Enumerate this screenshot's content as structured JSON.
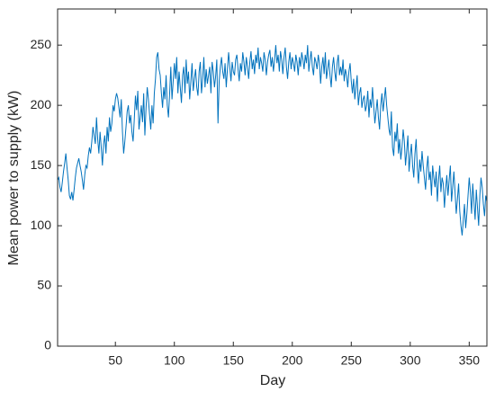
{
  "chart_data": {
    "type": "line",
    "xlabel": "Day",
    "ylabel": "Mean power to supply (kW)",
    "xlim": [
      1,
      365
    ],
    "xticks": [
      50,
      100,
      150,
      200,
      250,
      300,
      350
    ],
    "ylim": [
      0,
      280
    ],
    "yticks": [
      0,
      50,
      100,
      150,
      200,
      250
    ],
    "grid": false,
    "color": "#0072BD",
    "x": [
      1,
      2,
      3,
      4,
      5,
      6,
      7,
      8,
      9,
      10,
      11,
      12,
      13,
      14,
      15,
      16,
      17,
      18,
      19,
      20,
      21,
      22,
      23,
      24,
      25,
      26,
      27,
      28,
      29,
      30,
      31,
      32,
      33,
      34,
      35,
      36,
      37,
      38,
      39,
      40,
      41,
      42,
      43,
      44,
      45,
      46,
      47,
      48,
      49,
      50,
      51,
      52,
      53,
      54,
      55,
      56,
      57,
      58,
      59,
      60,
      61,
      62,
      63,
      64,
      65,
      66,
      67,
      68,
      69,
      70,
      71,
      72,
      73,
      74,
      75,
      76,
      77,
      78,
      79,
      80,
      81,
      82,
      83,
      84,
      85,
      86,
      87,
      88,
      89,
      90,
      91,
      92,
      93,
      94,
      95,
      96,
      97,
      98,
      99,
      100,
      101,
      102,
      103,
      104,
      105,
      106,
      107,
      108,
      109,
      110,
      111,
      112,
      113,
      114,
      115,
      116,
      117,
      118,
      119,
      120,
      121,
      122,
      123,
      124,
      125,
      126,
      127,
      128,
      129,
      130,
      131,
      132,
      133,
      134,
      135,
      136,
      137,
      138,
      139,
      140,
      141,
      142,
      143,
      144,
      145,
      146,
      147,
      148,
      149,
      150,
      151,
      152,
      153,
      154,
      155,
      156,
      157,
      158,
      159,
      160,
      161,
      162,
      163,
      164,
      165,
      166,
      167,
      168,
      169,
      170,
      171,
      172,
      173,
      174,
      175,
      176,
      177,
      178,
      179,
      180,
      181,
      182,
      183,
      184,
      185,
      186,
      187,
      188,
      189,
      190,
      191,
      192,
      193,
      194,
      195,
      196,
      197,
      198,
      199,
      200,
      201,
      202,
      203,
      204,
      205,
      206,
      207,
      208,
      209,
      210,
      211,
      212,
      213,
      214,
      215,
      216,
      217,
      218,
      219,
      220,
      221,
      222,
      223,
      224,
      225,
      226,
      227,
      228,
      229,
      230,
      231,
      232,
      233,
      234,
      235,
      236,
      237,
      238,
      239,
      240,
      241,
      242,
      243,
      244,
      245,
      246,
      247,
      248,
      249,
      250,
      251,
      252,
      253,
      254,
      255,
      256,
      257,
      258,
      259,
      260,
      261,
      262,
      263,
      264,
      265,
      266,
      267,
      268,
      269,
      270,
      271,
      272,
      273,
      274,
      275,
      276,
      277,
      278,
      279,
      280,
      281,
      282,
      283,
      284,
      285,
      286,
      287,
      288,
      289,
      290,
      291,
      292,
      293,
      294,
      295,
      296,
      297,
      298,
      299,
      300,
      301,
      302,
      303,
      304,
      305,
      306,
      307,
      308,
      309,
      310,
      311,
      312,
      313,
      314,
      315,
      316,
      317,
      318,
      319,
      320,
      321,
      322,
      323,
      324,
      325,
      326,
      327,
      328,
      329,
      330,
      331,
      332,
      333,
      334,
      335,
      336,
      337,
      338,
      339,
      340,
      341,
      342,
      343,
      344,
      345,
      346,
      347,
      348,
      349,
      350,
      351,
      352,
      353,
      354,
      355,
      356,
      357,
      358,
      359,
      360,
      361,
      362,
      363,
      364,
      365
    ],
    "values": [
      138,
      140,
      132,
      128,
      136,
      145,
      152,
      160,
      148,
      138,
      125,
      122,
      128,
      121,
      130,
      140,
      148,
      152,
      156,
      150,
      145,
      138,
      130,
      142,
      150,
      148,
      158,
      165,
      160,
      170,
      182,
      175,
      168,
      190,
      172,
      160,
      178,
      165,
      150,
      168,
      175,
      160,
      182,
      170,
      190,
      178,
      185,
      200,
      195,
      205,
      210,
      206,
      198,
      190,
      205,
      178,
      160,
      170,
      182,
      195,
      200,
      185,
      192,
      178,
      170,
      188,
      208,
      196,
      212,
      180,
      190,
      200,
      186,
      210,
      175,
      198,
      215,
      205,
      192,
      180,
      200,
      185,
      210,
      222,
      240,
      244,
      230,
      225,
      210,
      198,
      215,
      205,
      225,
      200,
      190,
      210,
      232,
      205,
      220,
      235,
      222,
      240,
      210,
      228,
      215,
      202,
      225,
      232,
      210,
      238,
      218,
      228,
      205,
      220,
      235,
      212,
      222,
      230,
      215,
      208,
      228,
      236,
      210,
      222,
      240,
      215,
      230,
      218,
      225,
      232,
      210,
      236,
      228,
      215,
      224,
      238,
      185,
      220,
      232,
      240,
      228,
      222,
      235,
      215,
      230,
      244,
      232,
      220,
      236,
      228,
      225,
      238,
      242,
      230,
      220,
      235,
      228,
      244,
      236,
      225,
      240,
      232,
      222,
      236,
      245,
      230,
      238,
      226,
      242,
      235,
      248,
      230,
      240,
      235,
      228,
      244,
      238,
      225,
      236,
      242,
      246,
      232,
      240,
      228,
      238,
      250,
      235,
      242,
      228,
      245,
      238,
      226,
      240,
      248,
      232,
      222,
      236,
      244,
      230,
      240,
      235,
      228,
      242,
      236,
      225,
      240,
      232,
      244,
      238,
      230,
      242,
      235,
      250,
      228,
      238,
      245,
      232,
      225,
      240,
      236,
      230,
      242,
      235,
      218,
      232,
      240,
      226,
      244,
      222,
      230,
      238,
      225,
      215,
      232,
      240,
      228,
      220,
      235,
      242,
      225,
      232,
      225,
      238,
      220,
      230,
      225,
      215,
      228,
      235,
      220,
      210,
      222,
      205,
      215,
      225,
      200,
      210,
      215,
      198,
      205,
      208,
      195,
      200,
      212,
      190,
      205,
      198,
      215,
      200,
      185,
      195,
      205,
      190,
      180,
      200,
      210,
      195,
      205,
      215,
      200,
      190,
      180,
      175,
      195,
      165,
      158,
      178,
      170,
      185,
      160,
      172,
      155,
      165,
      180,
      170,
      150,
      162,
      175,
      145,
      158,
      168,
      150,
      140,
      160,
      172,
      148,
      135,
      155,
      145,
      162,
      150,
      140,
      130,
      148,
      158,
      138,
      145,
      125,
      150,
      140,
      132,
      145,
      120,
      138,
      150,
      128,
      140,
      135,
      115,
      130,
      142,
      125,
      138,
      150,
      120,
      132,
      145,
      128,
      110,
      122,
      135,
      112,
      100,
      92,
      105,
      118,
      98,
      110,
      125,
      140,
      128,
      110,
      135,
      120,
      105,
      130,
      115,
      100,
      125,
      140,
      132,
      118,
      108,
      125,
      120
    ]
  }
}
